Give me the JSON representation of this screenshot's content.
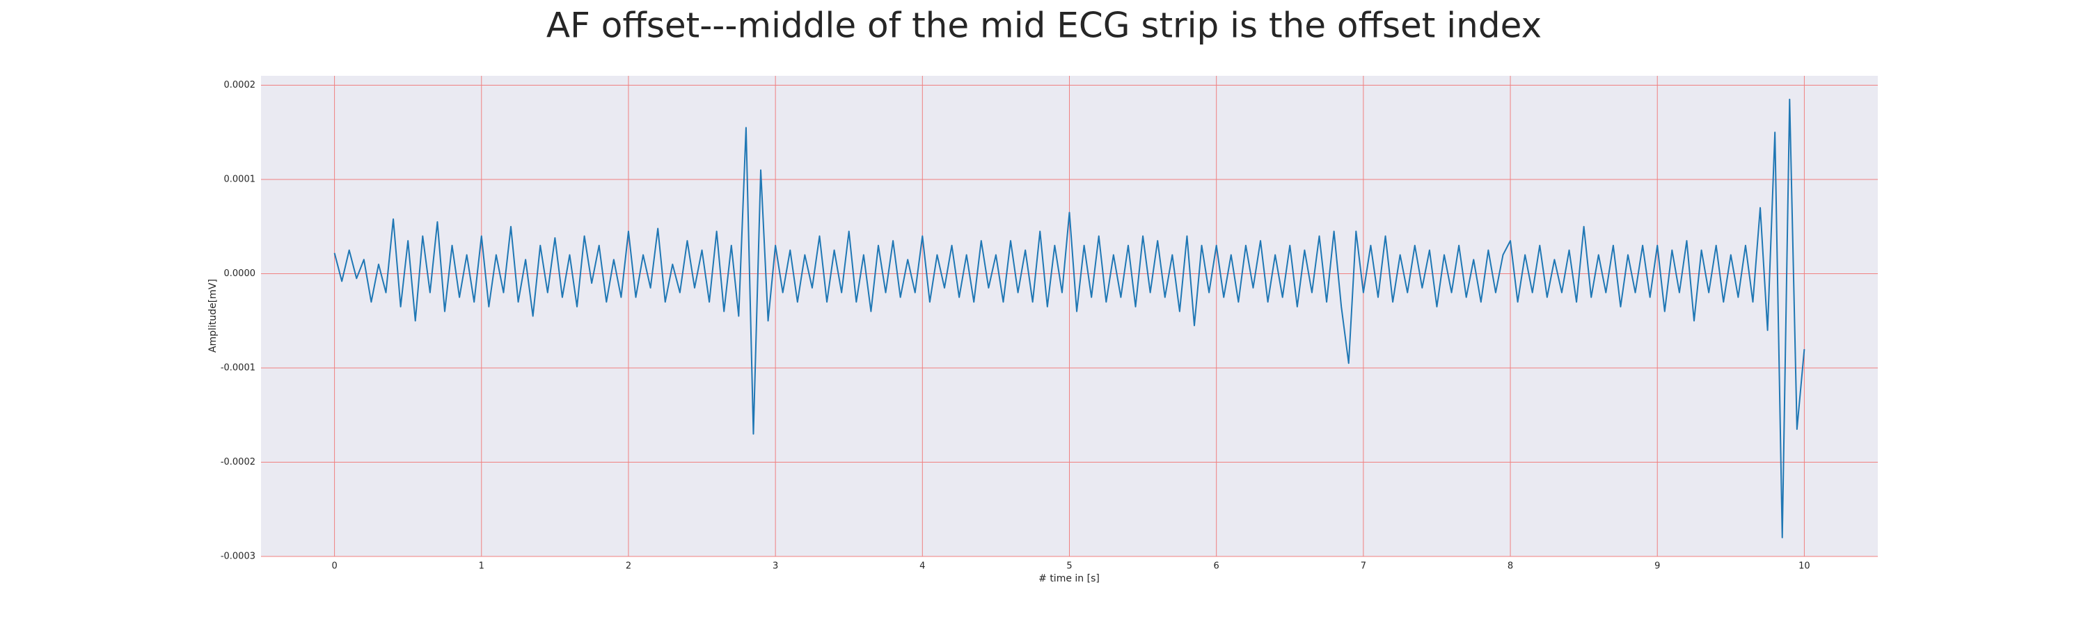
{
  "chart_data": {
    "type": "line",
    "title": "AF offset---middle of the mid ECG strip is the offset index",
    "xlabel": "# time in [s]",
    "ylabel": "Amplitude[mV]",
    "color": "#1f77b4",
    "grid": true,
    "grid_color": "#f08080",
    "background": "#eaeaf2",
    "xlim": [
      -0.5,
      10.5
    ],
    "ylim": [
      -0.0003,
      0.00021
    ],
    "xticks": [
      0,
      1,
      2,
      3,
      4,
      5,
      6,
      7,
      8,
      9,
      10
    ],
    "yticks": [
      -0.0003,
      -0.0002,
      -0.0001,
      {
        "value": 0,
        "label": "0.0000"
      },
      0.0001,
      0.0002
    ],
    "x": [
      0,
      0.05,
      0.1,
      0.15,
      0.2,
      0.25,
      0.3,
      0.35,
      0.4,
      0.45,
      0.5,
      0.55,
      0.6,
      0.65,
      0.7,
      0.75,
      0.8,
      0.85,
      0.9,
      0.95,
      1,
      1.05,
      1.1,
      1.15,
      1.2,
      1.25,
      1.3,
      1.35,
      1.4,
      1.45,
      1.5,
      1.55,
      1.6,
      1.65,
      1.7,
      1.75,
      1.8,
      1.85,
      1.9,
      1.95,
      2,
      2.05,
      2.1,
      2.15,
      2.2,
      2.25,
      2.3,
      2.35,
      2.4,
      2.45,
      2.5,
      2.55,
      2.6,
      2.65,
      2.7,
      2.75,
      2.8,
      2.85,
      2.9,
      2.95,
      3,
      3.05,
      3.1,
      3.15,
      3.2,
      3.25,
      3.3,
      3.35,
      3.4,
      3.45,
      3.5,
      3.55,
      3.6,
      3.65,
      3.7,
      3.75,
      3.8,
      3.85,
      3.9,
      3.95,
      4,
      4.05,
      4.1,
      4.15,
      4.2,
      4.25,
      4.3,
      4.35,
      4.4,
      4.45,
      4.5,
      4.55,
      4.6,
      4.65,
      4.7,
      4.75,
      4.8,
      4.85,
      4.9,
      4.95,
      5,
      5.05,
      5.1,
      5.15,
      5.2,
      5.25,
      5.3,
      5.35,
      5.4,
      5.45,
      5.5,
      5.55,
      5.6,
      5.65,
      5.7,
      5.75,
      5.8,
      5.85,
      5.9,
      5.95,
      6,
      6.05,
      6.1,
      6.15,
      6.2,
      6.25,
      6.3,
      6.35,
      6.4,
      6.45,
      6.5,
      6.55,
      6.6,
      6.65,
      6.7,
      6.75,
      6.8,
      6.85,
      6.9,
      6.95,
      7,
      7.05,
      7.1,
      7.15,
      7.2,
      7.25,
      7.3,
      7.35,
      7.4,
      7.45,
      7.5,
      7.55,
      7.6,
      7.65,
      7.7,
      7.75,
      7.8,
      7.85,
      7.9,
      7.95,
      8,
      8.05,
      8.1,
      8.15,
      8.2,
      8.25,
      8.3,
      8.35,
      8.4,
      8.45,
      8.5,
      8.55,
      8.6,
      8.65,
      8.7,
      8.75,
      8.8,
      8.85,
      8.9,
      8.95,
      9,
      9.05,
      9.1,
      9.15,
      9.2,
      9.25,
      9.3,
      9.35,
      9.4,
      9.45,
      9.5,
      9.55,
      9.6,
      9.65,
      9.7,
      9.75,
      9.8,
      9.85,
      9.9,
      9.95,
      10
    ],
    "values": [
      2.2e-05,
      -8e-06,
      2.5e-05,
      -5e-06,
      1.5e-05,
      -3e-05,
      1e-05,
      -2e-05,
      5.8e-05,
      -3.5e-05,
      3.5e-05,
      -5e-05,
      4e-05,
      -2e-05,
      5.5e-05,
      -4e-05,
      3e-05,
      -2.5e-05,
      2e-05,
      -3e-05,
      4e-05,
      -3.5e-05,
      2e-05,
      -2e-05,
      5e-05,
      -3e-05,
      1.5e-05,
      -4.5e-05,
      3e-05,
      -2e-05,
      3.8e-05,
      -2.5e-05,
      2e-05,
      -3.5e-05,
      4e-05,
      -1e-05,
      3e-05,
      -3e-05,
      1.5e-05,
      -2.5e-05,
      4.5e-05,
      -2.5e-05,
      2e-05,
      -1.5e-05,
      4.8e-05,
      -3e-05,
      1e-05,
      -2e-05,
      3.5e-05,
      -1.5e-05,
      2.5e-05,
      -3e-05,
      4.5e-05,
      -4e-05,
      3e-05,
      -4.5e-05,
      0.000155,
      -0.00017,
      0.00011,
      -5e-05,
      3e-05,
      -2e-05,
      2.5e-05,
      -3e-05,
      2e-05,
      -1.5e-05,
      4e-05,
      -3e-05,
      2.5e-05,
      -2e-05,
      4.5e-05,
      -3e-05,
      2e-05,
      -4e-05,
      3e-05,
      -2e-05,
      3.5e-05,
      -2.5e-05,
      1.5e-05,
      -2e-05,
      4e-05,
      -3e-05,
      2e-05,
      -1.5e-05,
      3e-05,
      -2.5e-05,
      2e-05,
      -3e-05,
      3.5e-05,
      -1.5e-05,
      2e-05,
      -3e-05,
      3.5e-05,
      -2e-05,
      2.5e-05,
      -3e-05,
      4.5e-05,
      -3.5e-05,
      3e-05,
      -2e-05,
      6.5e-05,
      -4e-05,
      3e-05,
      -2.5e-05,
      4e-05,
      -3e-05,
      2e-05,
      -2.5e-05,
      3e-05,
      -3.5e-05,
      4e-05,
      -2e-05,
      3.5e-05,
      -2.5e-05,
      2e-05,
      -4e-05,
      4e-05,
      -5.5e-05,
      3e-05,
      -2e-05,
      3e-05,
      -2.5e-05,
      2e-05,
      -3e-05,
      3e-05,
      -1.5e-05,
      3.5e-05,
      -3e-05,
      2e-05,
      -2.5e-05,
      3e-05,
      -3.5e-05,
      2.5e-05,
      -2e-05,
      4e-05,
      -3e-05,
      4.5e-05,
      -3.5e-05,
      -9.5e-05,
      4.5e-05,
      -2e-05,
      3e-05,
      -2.5e-05,
      4e-05,
      -3e-05,
      2e-05,
      -2e-05,
      3e-05,
      -1.5e-05,
      2.5e-05,
      -3.5e-05,
      2e-05,
      -2e-05,
      3e-05,
      -2.5e-05,
      1.5e-05,
      -3e-05,
      2.5e-05,
      -2e-05,
      2e-05,
      3.5e-05,
      -3e-05,
      2e-05,
      -2e-05,
      3e-05,
      -2.5e-05,
      1.5e-05,
      -2e-05,
      2.5e-05,
      -3e-05,
      5e-05,
      -2.5e-05,
      2e-05,
      -2e-05,
      3e-05,
      -3.5e-05,
      2e-05,
      -2e-05,
      3e-05,
      -2.5e-05,
      3e-05,
      -4e-05,
      2.5e-05,
      -2e-05,
      3.5e-05,
      -5e-05,
      2.5e-05,
      -2e-05,
      3e-05,
      -3e-05,
      2e-05,
      -2.5e-05,
      3e-05,
      -3e-05,
      7e-05,
      -6e-05,
      0.00015,
      -0.00028,
      0.000185,
      -0.000165,
      -8e-05
    ]
  }
}
